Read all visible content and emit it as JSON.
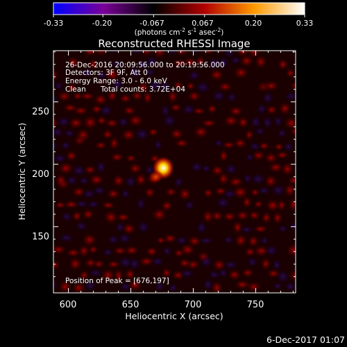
{
  "colorbar": {
    "ticks": [
      "-0.33",
      "-0.20",
      "-0.067",
      "0.067",
      "0.20",
      "0.33"
    ],
    "tick_values": [
      -0.33,
      -0.2,
      -0.067,
      0.067,
      0.2,
      0.33
    ],
    "range": [
      -0.33,
      0.33
    ],
    "unit_parts": [
      "(photons cm",
      "-2",
      " s",
      "-1",
      " asec",
      "-2",
      ")"
    ],
    "colors": [
      "#0000ff",
      "#7a0098",
      "#000000",
      "#b00000",
      "#ff9a00",
      "#ffffff"
    ]
  },
  "chart_data": {
    "type": "heatmap",
    "title": "Reconstructed RHESSI Image",
    "xlabel": "Heliocentric X (arcsec)",
    "ylabel": "Heliocentric Y (arcsec)",
    "xlim": [
      588,
      782
    ],
    "ylim": [
      97,
      291
    ],
    "x_ticks": [
      600,
      650,
      700,
      750
    ],
    "y_ticks": [
      150,
      200,
      250
    ],
    "x_tick_labels": [
      "600",
      "650",
      "700",
      "750"
    ],
    "y_tick_labels": [
      "150",
      "200",
      "250"
    ],
    "annotations": [
      "26-Dec-2016 20:09:56.000 to 20:19:56.000",
      "Detectors: 3F 9F, Att 0",
      "Energy Range: 3.0 - 6.0 keV",
      "Clean",
      "Total counts: 3.72E+04"
    ],
    "peak_label": "Position of Peak = [676,197]",
    "peak": [
      676,
      197
    ],
    "features": [
      {
        "x": 676,
        "y": 197,
        "value": 0.33
      },
      {
        "x": 670,
        "y": 190,
        "value": 0.2
      },
      {
        "x": 708,
        "y": 126,
        "value": 0.14
      },
      {
        "x": 609,
        "y": 219,
        "value": 0.1
      },
      {
        "x": 756,
        "y": 262,
        "value": 0.09
      },
      {
        "x": 596,
        "y": 184,
        "value": 0.08
      }
    ]
  },
  "footer": {
    "date": "6-Dec-2017 01:07"
  }
}
